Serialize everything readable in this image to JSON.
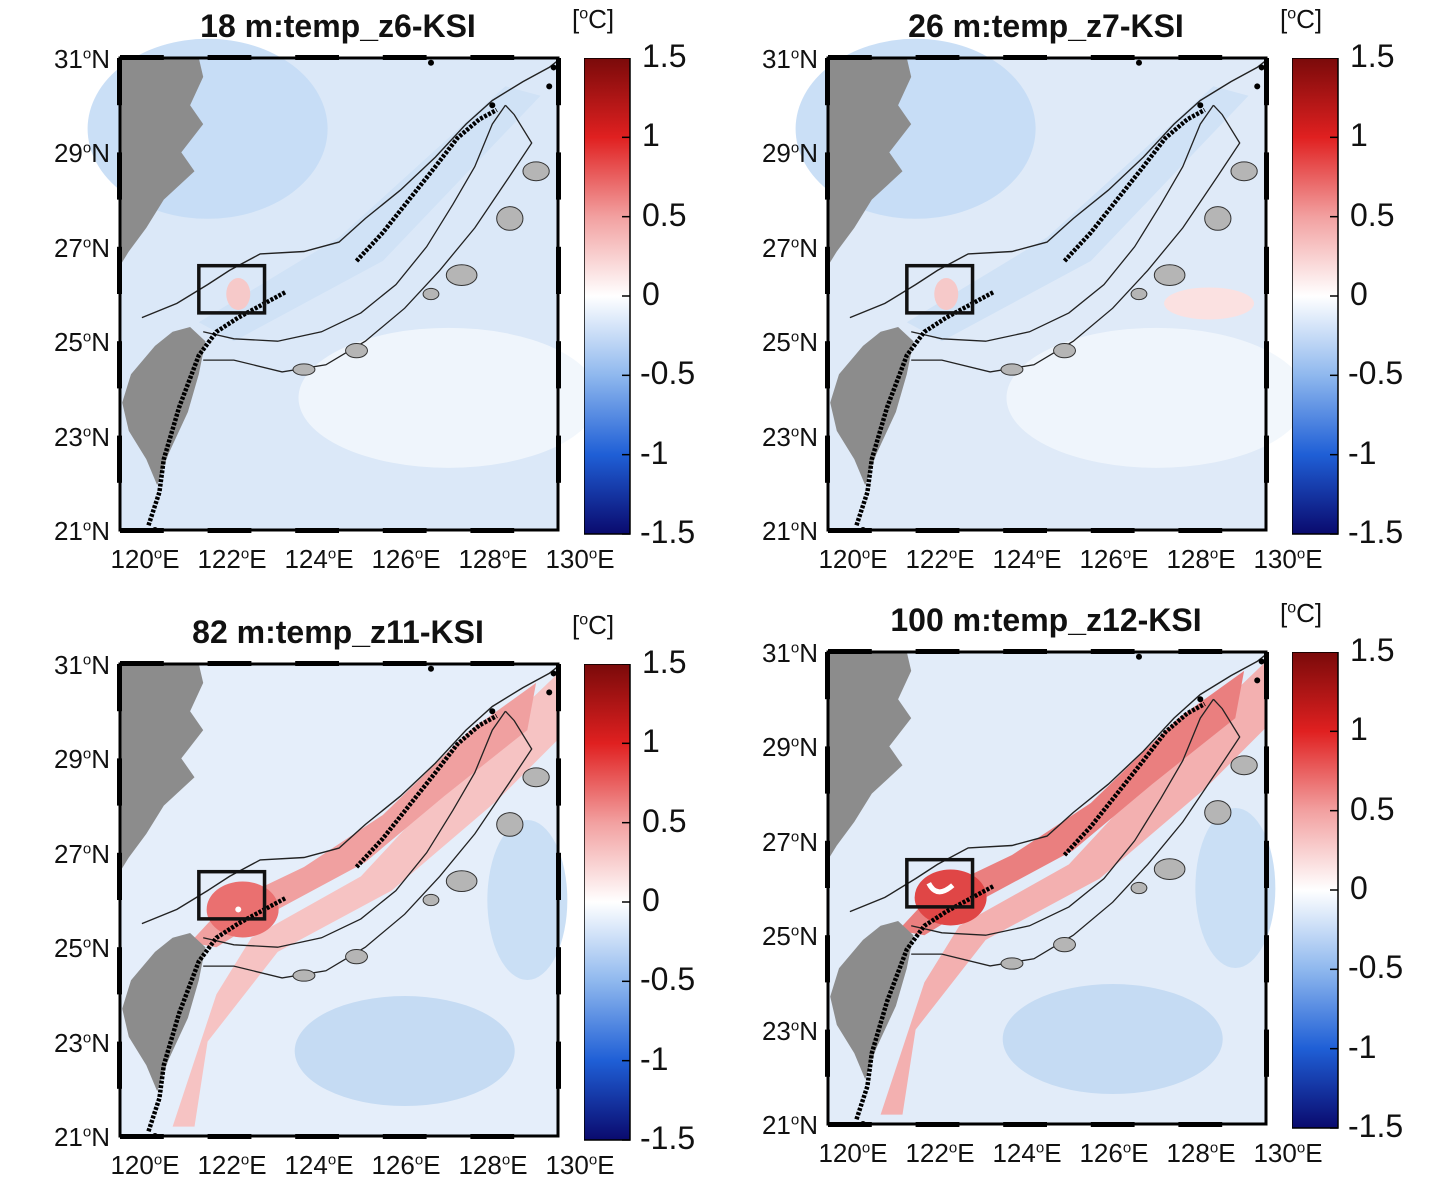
{
  "figure": {
    "unit_label_prefix": "[",
    "unit_label_deg": "o",
    "unit_label_suffix": "C]"
  },
  "axes": {
    "lat_ticks": [
      "31",
      "29",
      "27",
      "25",
      "23",
      "21"
    ],
    "lat_suffix": "N",
    "lon_ticks": [
      "120",
      "122",
      "124",
      "126",
      "128",
      "130"
    ],
    "lon_suffix": "E",
    "deg_symbol": "o"
  },
  "colorbar": {
    "ticks": [
      "1.5",
      "1",
      "0.5",
      "0",
      "-0.5",
      "-1",
      "-1.5"
    ],
    "range": [
      -1.5,
      1.5
    ],
    "colormap": [
      "#0a0a6e",
      "#1f5fd6",
      "#8fb8ee",
      "#ffffff",
      "#f2a0a0",
      "#e02020",
      "#7a0a0a"
    ]
  },
  "panels": [
    {
      "title": "18 m:temp_z6-KSI",
      "mode": "cool"
    },
    {
      "title": "26 m:temp_z7-KSI",
      "mode": "cool2"
    },
    {
      "title": "82 m:temp_z11-KSI",
      "mode": "warm"
    },
    {
      "title": "100 m:temp_z12-KSI",
      "mode": "warm2"
    }
  ],
  "colors": {
    "land": "#8c8c8c",
    "mask": "#ffffff",
    "contour": "#222222",
    "box": "#111111"
  }
}
